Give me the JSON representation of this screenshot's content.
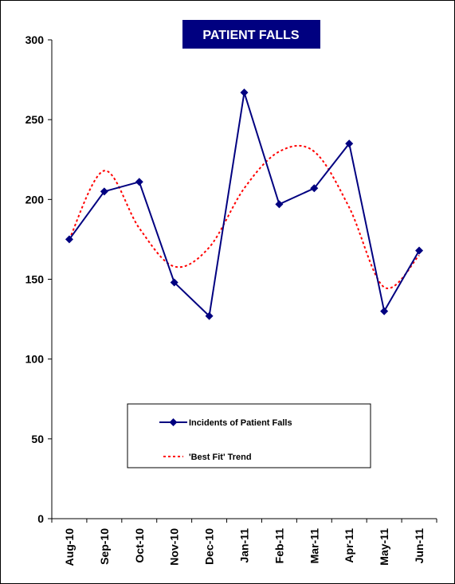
{
  "colors": {
    "series": "#000080",
    "trend": "#ff0000",
    "title_bg": "#000080",
    "title_text": "#ffffff",
    "axis": "#000000"
  },
  "chart_data": {
    "type": "line",
    "title": "PATIENT FALLS",
    "xlabel": "",
    "ylabel": "",
    "categories": [
      "Aug-10",
      "Sep-10",
      "Oct-10",
      "Nov-10",
      "Dec-10",
      "Jan-11",
      "Feb-11",
      "Mar-11",
      "Apr-11",
      "May-11",
      "Jun-11"
    ],
    "series": [
      {
        "name": "Incidents of Patient Falls",
        "values": [
          175,
          205,
          211,
          148,
          127,
          267,
          197,
          207,
          235,
          130,
          168
        ],
        "marker": "diamond",
        "line_style": "solid"
      },
      {
        "name": "'Best Fit' Trend",
        "values": [
          175,
          218,
          182,
          158,
          170,
          207,
          230,
          230,
          195,
          145,
          165
        ],
        "marker": "none",
        "line_style": "dotted"
      }
    ],
    "ylim": [
      0,
      300
    ],
    "yticks": [
      0,
      50,
      100,
      150,
      200,
      250,
      300
    ],
    "grid": false,
    "legend_position": "bottom-center"
  }
}
